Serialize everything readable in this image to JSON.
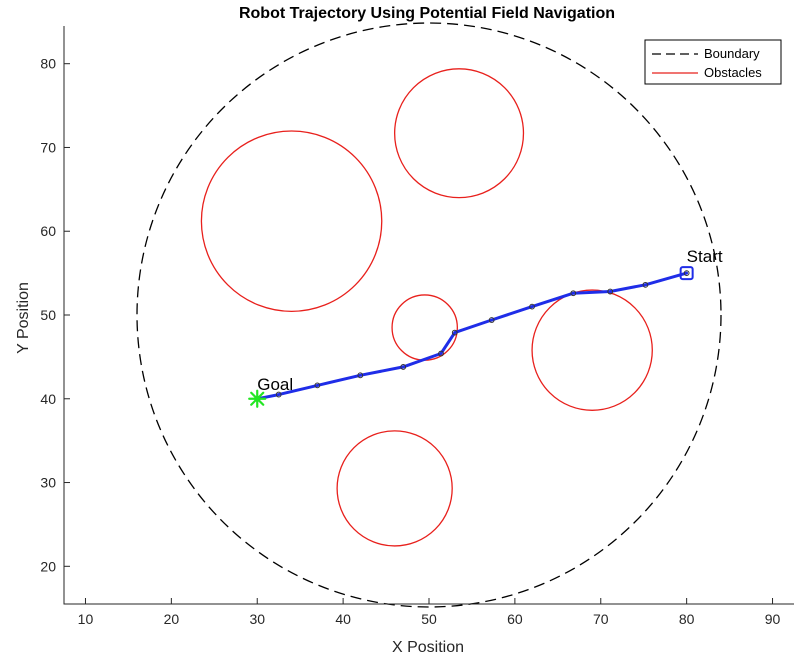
{
  "chart_data": {
    "type": "line",
    "title": "Robot Trajectory Using Potential Field Navigation",
    "xlabel": "X Position",
    "ylabel": "Y Position",
    "xlim": [
      7.5,
      92.5
    ],
    "ylim": [
      15.5,
      84.5
    ],
    "xticks": [
      10,
      20,
      30,
      40,
      50,
      60,
      70,
      80,
      90
    ],
    "yticks": [
      20,
      30,
      40,
      50,
      60,
      70,
      80
    ],
    "grid": false,
    "legend": {
      "placement": "top-right",
      "entries": [
        {
          "label": "Boundary",
          "style": "dashed",
          "color": "#000000"
        },
        {
          "label": "Obstacles",
          "style": "solid",
          "color": "#e8201c"
        }
      ]
    },
    "boundary": {
      "cx": 50,
      "cy": 50,
      "r": 34
    },
    "obstacles": [
      {
        "cx": 34,
        "cy": 61.2,
        "r": 10.5
      },
      {
        "cx": 53.5,
        "cy": 71.7,
        "r": 7.5
      },
      {
        "cx": 49.5,
        "cy": 48.5,
        "r": 3.8
      },
      {
        "cx": 69,
        "cy": 45.8,
        "r": 7
      },
      {
        "cx": 46,
        "cy": 29.3,
        "r": 6.7
      }
    ],
    "trajectory": {
      "x": [
        80,
        75.2,
        71.1,
        66.8,
        62,
        57.3,
        53,
        51.4,
        47,
        42,
        37,
        32.5,
        30
      ],
      "y": [
        55,
        53.6,
        52.8,
        52.6,
        51,
        49.4,
        47.9,
        45.4,
        43.8,
        42.8,
        41.6,
        40.5,
        40
      ]
    },
    "start": {
      "label": "Start",
      "x": 80,
      "y": 55
    },
    "goal": {
      "label": "Goal",
      "x": 30,
      "y": 40
    },
    "colors": {
      "trajectory": "#1f2de8",
      "obstacle": "#e8201c",
      "boundary": "#000000",
      "goal": "#22e622",
      "start": "#1f2de8"
    }
  }
}
